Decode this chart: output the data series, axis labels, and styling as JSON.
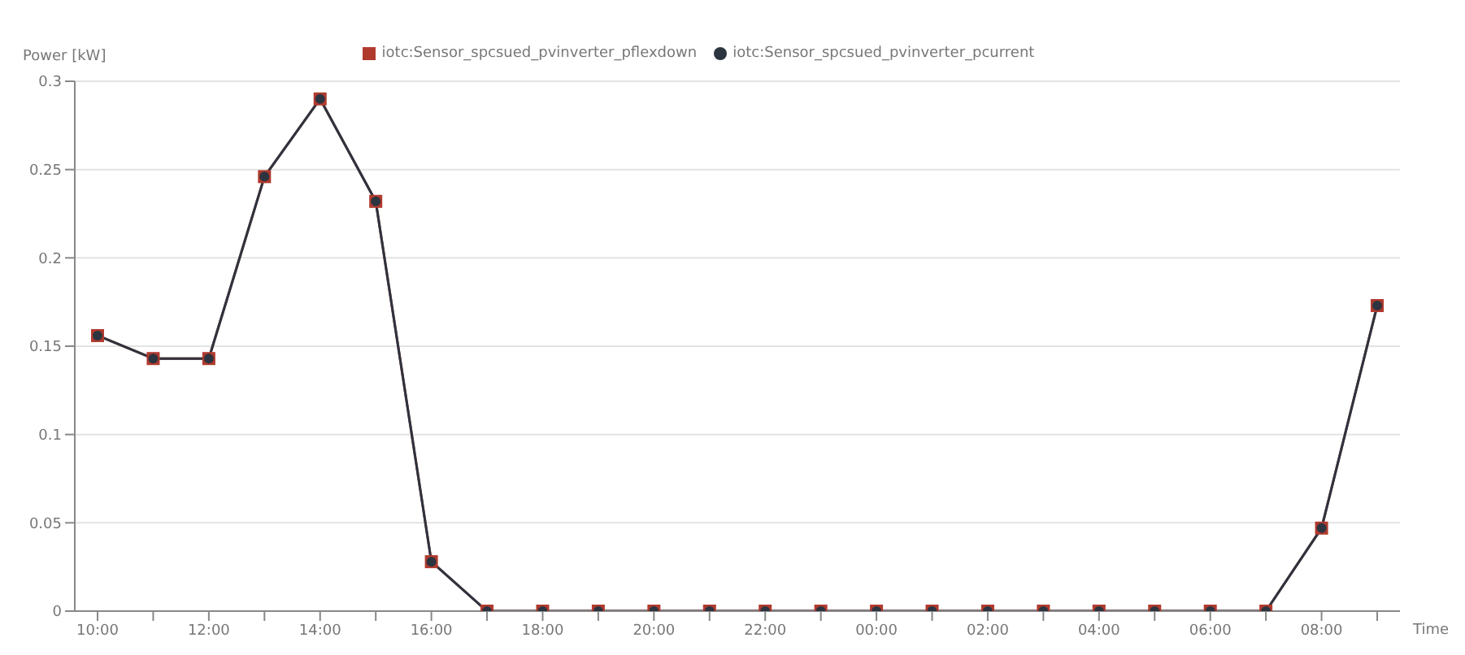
{
  "chart_data": {
    "type": "line",
    "ylabel": "Power [kW]",
    "xlabel": "Time",
    "categories": [
      "10:00",
      null,
      "12:00",
      null,
      "14:00",
      null,
      "16:00",
      null,
      "18:00",
      null,
      "20:00",
      null,
      "22:00",
      null,
      "00:00",
      null,
      "02:00",
      null,
      "04:00",
      null,
      "06:00",
      null,
      "08:00",
      null
    ],
    "series": [
      {
        "name": "iotc:Sensor_spcsued_pvinverter_pflexdown",
        "color": "#b03a2e",
        "marker": "square",
        "values": [
          0.156,
          0.143,
          0.143,
          0.246,
          0.29,
          0.232,
          0.028,
          0,
          0,
          0,
          0,
          0,
          0,
          0,
          0,
          0,
          0,
          0,
          0,
          0,
          0,
          0,
          0.047,
          0.173
        ]
      },
      {
        "name": "iotc:Sensor_spcsued_pvinverter_pcurrent",
        "color": "#2c3440",
        "marker": "circle",
        "values": [
          0.156,
          0.143,
          0.143,
          0.246,
          0.29,
          0.232,
          0.028,
          0,
          0,
          0,
          0,
          0,
          0,
          0,
          0,
          0,
          0,
          0,
          0,
          0,
          0,
          0,
          0.047,
          0.173
        ]
      }
    ],
    "ylim": [
      0,
      0.3
    ],
    "yticks": [
      0,
      0.05,
      0.1,
      0.15,
      0.2,
      0.25,
      0.3
    ],
    "grid": "y",
    "legend": "top"
  }
}
